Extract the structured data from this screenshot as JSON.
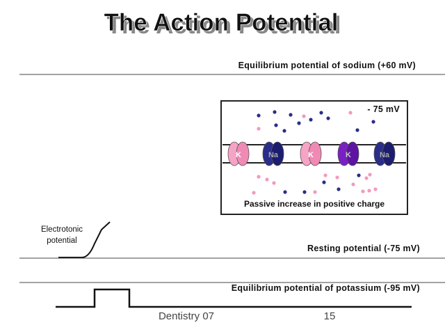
{
  "header": {
    "title": "The Action Potential"
  },
  "levels": {
    "sodium": "Equilibrium potential of sodium (+60 mV)",
    "resting": "Resting potential (-75 mV)",
    "potassium": "Equilibrium potential of potassium (-95 mV)"
  },
  "inset": {
    "voltage": "- 75 mV",
    "channels": [
      "K",
      "Na",
      "K",
      "K",
      "Na"
    ],
    "caption": "Passive increase in positive charge"
  },
  "annotation": {
    "line1": "Electrotonic",
    "line2": "potential"
  },
  "footer": {
    "left": "Dentistry 07",
    "page": "15"
  }
}
